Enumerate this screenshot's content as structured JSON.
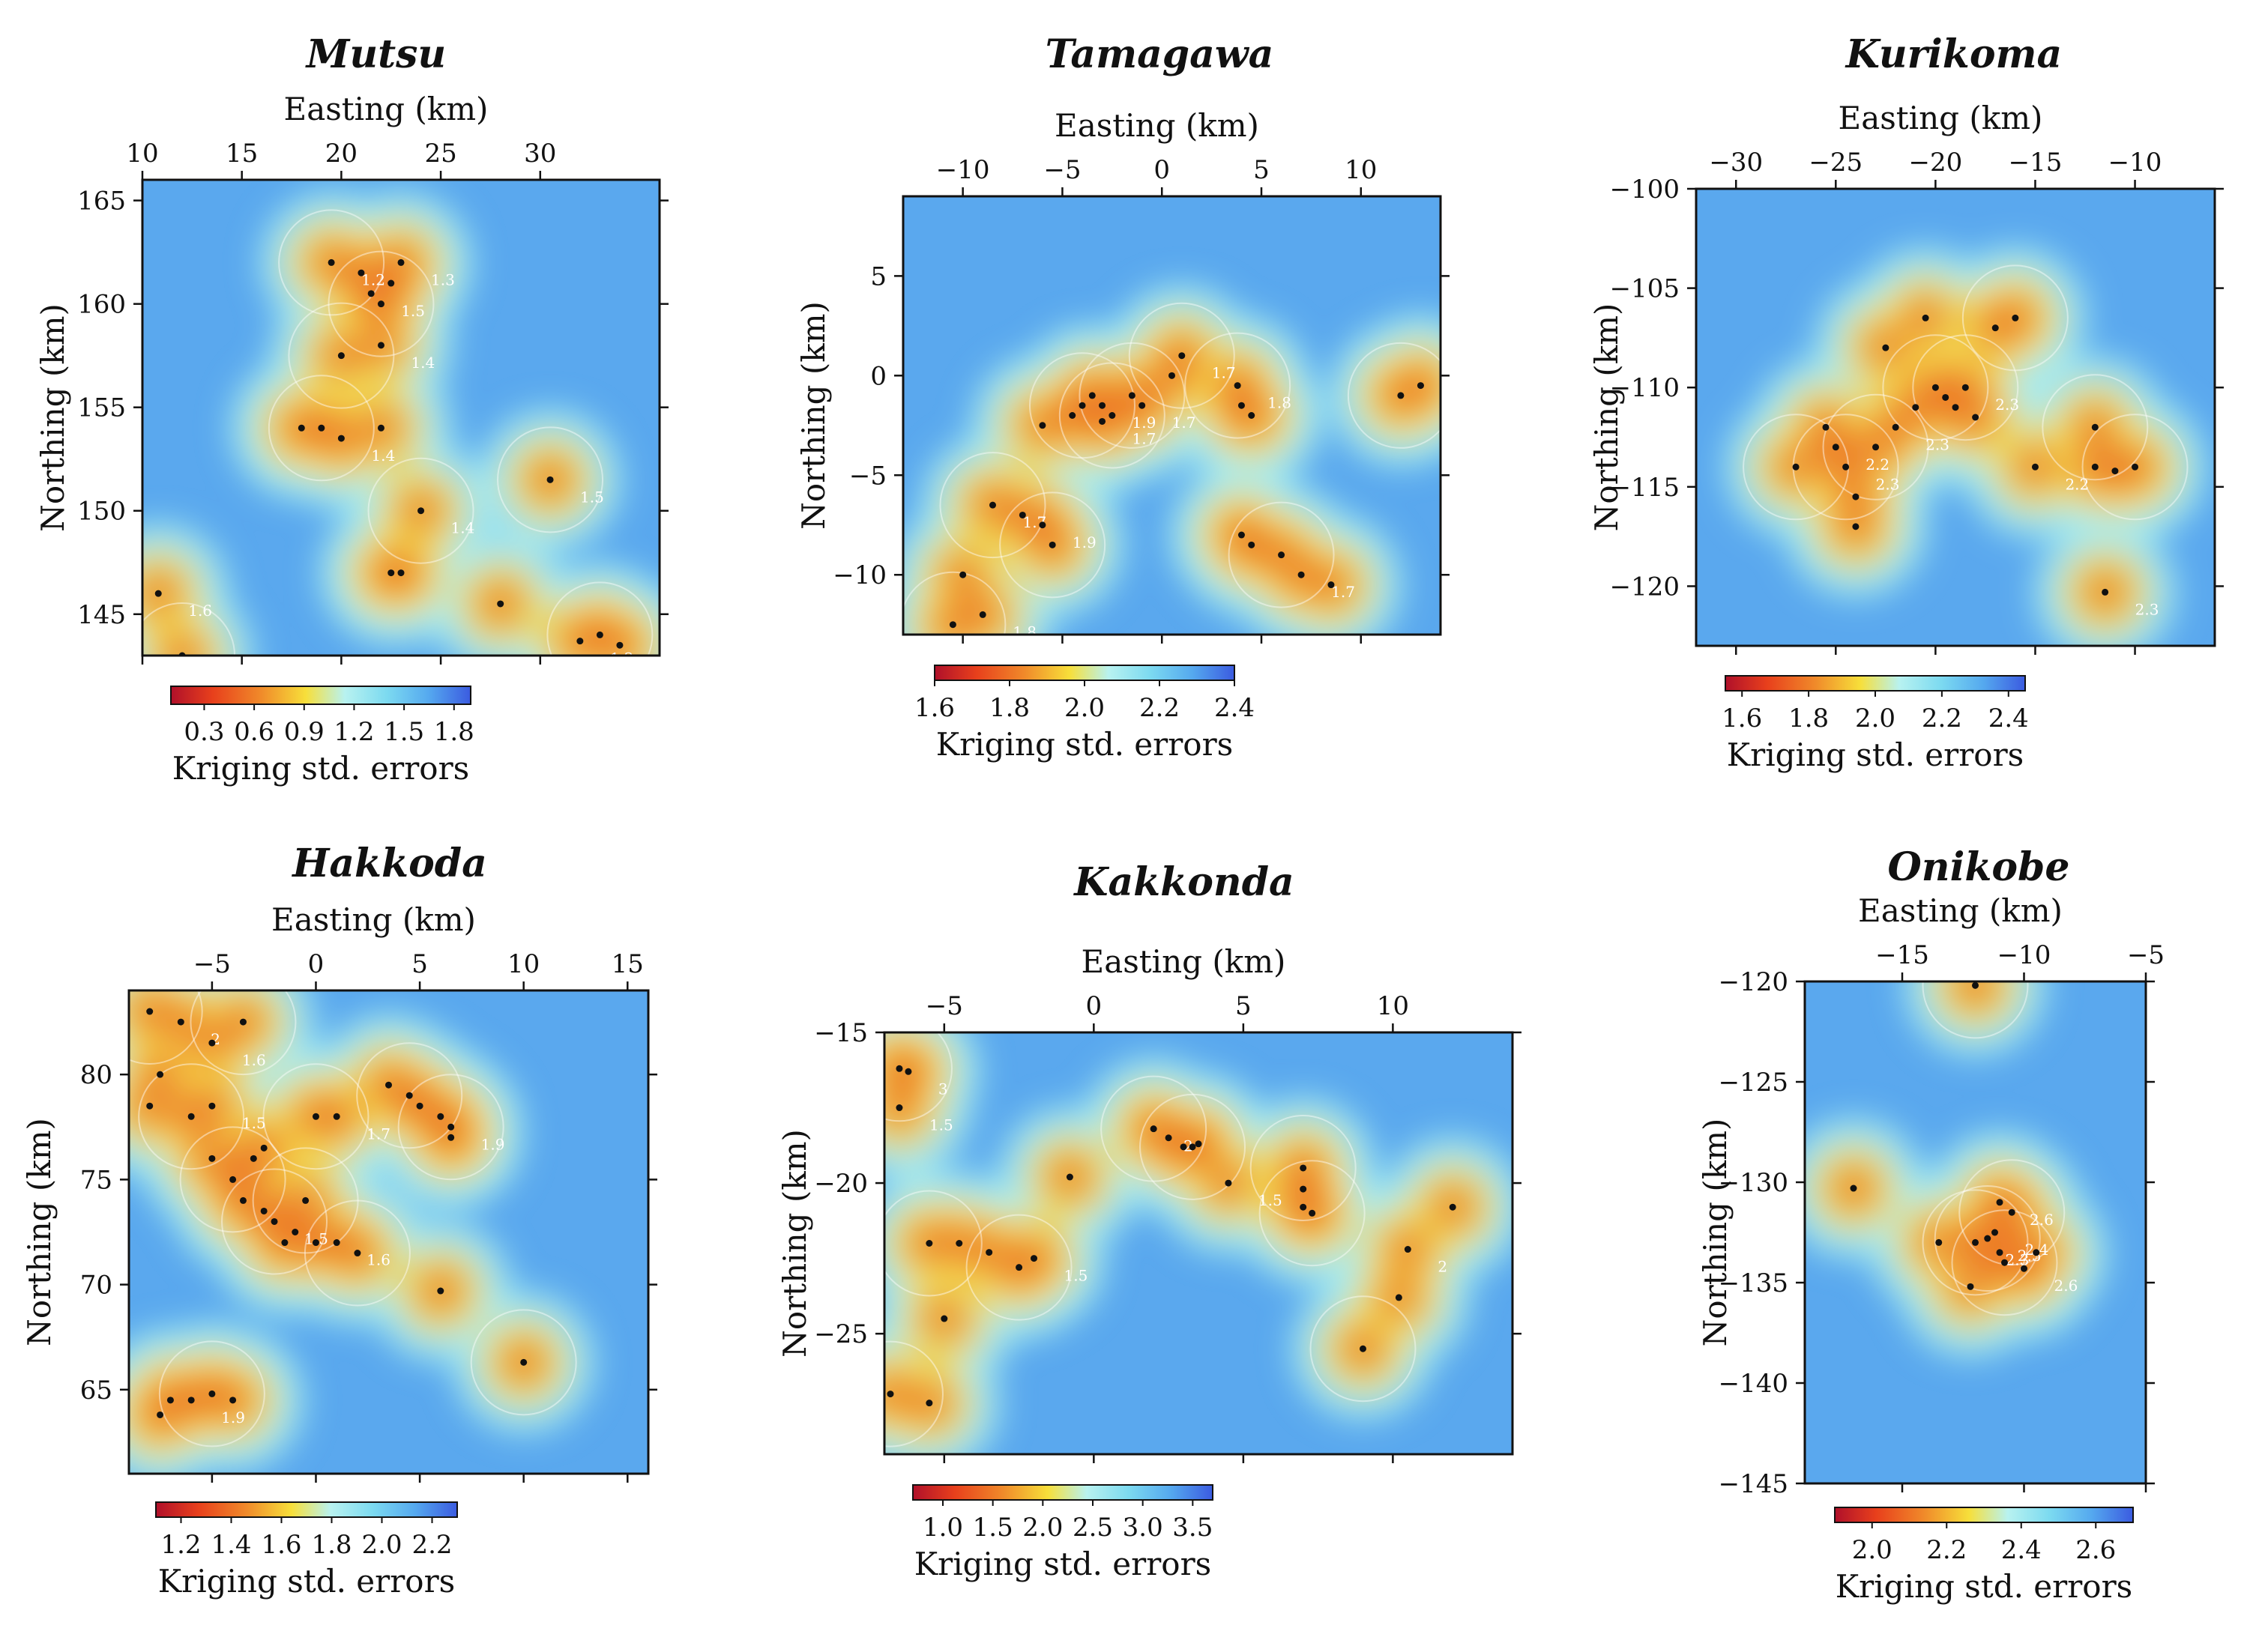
{
  "figure": {
    "x_axis_label": "Easting (km)",
    "y_axis_label": "Northing (km)",
    "colorbar_label": "Kriging std. errors"
  },
  "chart_data": [
    {
      "type": "heatmap",
      "title": "Mutsu",
      "xlabel": "Easting (km)",
      "ylabel": "Northing (km)",
      "xlim": [
        10,
        36
      ],
      "ylim": [
        143,
        166
      ],
      "xticks": [
        10,
        15,
        20,
        25,
        30
      ],
      "yticks": [
        145,
        150,
        155,
        160,
        165
      ],
      "colorbar": {
        "label": "Kriging std. errors",
        "range": [
          0.1,
          1.9
        ],
        "ticks": [
          "0.3",
          "0.6",
          "0.9",
          "1.2",
          "1.5",
          "1.8"
        ]
      },
      "points": [
        [
          19.5,
          162
        ],
        [
          21,
          161.5
        ],
        [
          21.5,
          160.5
        ],
        [
          22,
          160
        ],
        [
          22.5,
          161
        ],
        [
          23,
          162
        ],
        [
          20,
          157.5
        ],
        [
          22,
          158
        ],
        [
          18,
          154
        ],
        [
          19,
          154
        ],
        [
          20,
          153.5
        ],
        [
          22,
          154
        ],
        [
          24,
          150
        ],
        [
          22.5,
          147
        ],
        [
          23,
          147
        ],
        [
          30.5,
          151.5
        ],
        [
          28,
          145.5
        ],
        [
          32,
          143.7
        ],
        [
          33,
          144
        ],
        [
          34,
          143.5
        ],
        [
          10.8,
          146
        ],
        [
          12,
          143
        ]
      ],
      "contour_labels": [
        "1.5",
        "1.4",
        "1.4",
        "1.2",
        "1.2",
        "1.3",
        "1.4",
        "1.5",
        "1.6"
      ]
    },
    {
      "type": "heatmap",
      "title": "Tamagawa",
      "xlabel": "Easting (km)",
      "ylabel": "Northing (km)",
      "xlim": [
        -13,
        14
      ],
      "ylim": [
        -13,
        9
      ],
      "xticks": [
        -10,
        -5,
        0,
        5,
        10
      ],
      "yticks": [
        -10,
        -5,
        0,
        5
      ],
      "colorbar": {
        "label": "Kriging std. errors",
        "range": [
          1.6,
          2.4
        ],
        "ticks": [
          "1.6",
          "1.8",
          "2.0",
          "2.2",
          "2.4"
        ]
      },
      "points": [
        [
          -4,
          -1.5
        ],
        [
          -3.5,
          -1
        ],
        [
          -3,
          -1.5
        ],
        [
          -2.5,
          -2
        ],
        [
          -3,
          -2.3
        ],
        [
          -4.5,
          -2
        ],
        [
          -1.5,
          -1
        ],
        [
          -1,
          -1.5
        ],
        [
          0.5,
          0
        ],
        [
          3.8,
          -0.5
        ],
        [
          4,
          -1.5
        ],
        [
          4.5,
          -2
        ],
        [
          -8.5,
          -6.5
        ],
        [
          -7,
          -7
        ],
        [
          -6,
          -7.5
        ],
        [
          -5.5,
          -8.5
        ],
        [
          -10,
          -10
        ],
        [
          -9,
          -12
        ],
        [
          -10.5,
          -12.5
        ],
        [
          4,
          -8
        ],
        [
          4.5,
          -8.5
        ],
        [
          6,
          -9
        ],
        [
          7,
          -10
        ],
        [
          8.5,
          -10.5
        ],
        [
          12,
          -1
        ],
        [
          13,
          -0.5
        ],
        [
          -6,
          -2.5
        ],
        [
          1,
          1
        ]
      ],
      "contour_labels": [
        "1.9",
        "1.7",
        "1.7",
        "1.8",
        "1.7",
        "1.7",
        "1.7",
        "1.8",
        "1.9"
      ]
    },
    {
      "type": "heatmap",
      "title": "Kurikoma",
      "xlabel": "Easting (km)",
      "ylabel": "Northing (km)",
      "xlim": [
        -32,
        -6
      ],
      "ylim": [
        -123,
        -100
      ],
      "xticks": [
        -30,
        -25,
        -20,
        -15,
        -10
      ],
      "yticks": [
        -100,
        -105,
        -110,
        -115,
        -120
      ],
      "colorbar": {
        "label": "Kriging std. errors",
        "range": [
          1.55,
          2.45
        ],
        "ticks": [
          "1.6",
          "1.8",
          "2.0",
          "2.2",
          "2.4"
        ]
      },
      "points": [
        [
          -27,
          -114
        ],
        [
          -25.5,
          -112
        ],
        [
          -25,
          -113
        ],
        [
          -24.5,
          -114
        ],
        [
          -24,
          -115.5
        ],
        [
          -24,
          -117
        ],
        [
          -23,
          -113
        ],
        [
          -22,
          -112
        ],
        [
          -21,
          -111
        ],
        [
          -20,
          -110
        ],
        [
          -19.5,
          -110.5
        ],
        [
          -19,
          -111
        ],
        [
          -18.5,
          -110
        ],
        [
          -18,
          -111.5
        ],
        [
          -17,
          -107
        ],
        [
          -16,
          -106.5
        ],
        [
          -20.5,
          -106.5
        ],
        [
          -15,
          -114
        ],
        [
          -12,
          -112
        ],
        [
          -12,
          -114
        ],
        [
          -11,
          -114.2
        ],
        [
          -10,
          -114
        ],
        [
          -11.5,
          -120.3
        ],
        [
          -22.5,
          -108
        ]
      ],
      "contour_labels": [
        "2.2",
        "2.3",
        "2.3",
        "2.2",
        "2.3",
        "2.3"
      ]
    },
    {
      "type": "heatmap",
      "title": "Hakkoda",
      "xlabel": "Easting (km)",
      "ylabel": "Northing (km)",
      "xlim": [
        -9,
        16
      ],
      "ylim": [
        61,
        84
      ],
      "xticks": [
        -5,
        0,
        5,
        10,
        15
      ],
      "yticks": [
        65,
        70,
        75,
        80
      ],
      "colorbar": {
        "label": "Kriging std. errors",
        "range": [
          1.1,
          2.3
        ],
        "ticks": [
          "1.2",
          "1.4",
          "1.6",
          "1.8",
          "2.0",
          "2.2"
        ]
      },
      "points": [
        [
          -8,
          83
        ],
        [
          -6.5,
          82.5
        ],
        [
          -5,
          81.5
        ],
        [
          -3.5,
          82.5
        ],
        [
          -7.5,
          80
        ],
        [
          -8,
          78.5
        ],
        [
          -6,
          78
        ],
        [
          -5,
          78.5
        ],
        [
          -5,
          76
        ],
        [
          -4,
          75
        ],
        [
          -3.5,
          74
        ],
        [
          -2.5,
          73.5
        ],
        [
          -2,
          73
        ],
        [
          -1.5,
          72
        ],
        [
          -1,
          72.5
        ],
        [
          -0.5,
          74
        ],
        [
          0,
          72
        ],
        [
          1,
          72
        ],
        [
          2,
          71.5
        ],
        [
          -3,
          76
        ],
        [
          -2.5,
          76.5
        ],
        [
          0,
          78
        ],
        [
          1,
          78
        ],
        [
          3.5,
          79.5
        ],
        [
          4.5,
          79
        ],
        [
          5,
          78.5
        ],
        [
          6,
          78
        ],
        [
          6.5,
          77.5
        ],
        [
          6.5,
          77
        ],
        [
          6,
          69.7
        ],
        [
          10,
          66.3
        ],
        [
          -7,
          64.5
        ],
        [
          -6,
          64.5
        ],
        [
          -5,
          64.8
        ],
        [
          -4,
          64.5
        ],
        [
          -7.5,
          63.8
        ]
      ],
      "contour_labels": [
        "1.6",
        "1.5",
        "1.5",
        "1.6",
        "1.7",
        "1.9",
        "1.9",
        "2"
      ]
    },
    {
      "type": "heatmap",
      "title": "Kakkonda",
      "xlabel": "Easting (km)",
      "ylabel": "Northing (km)",
      "xlim": [
        -7,
        14
      ],
      "ylim": [
        -29,
        -15
      ],
      "xticks": [
        -5,
        0,
        5,
        10
      ],
      "yticks": [
        -15,
        -20,
        -25
      ],
      "colorbar": {
        "label": "Kriging std. errors",
        "range": [
          0.7,
          3.7
        ],
        "ticks": [
          "1.0",
          "1.5",
          "2.0",
          "2.5",
          "3.0",
          "3.5"
        ]
      },
      "points": [
        [
          -6.5,
          -16.2
        ],
        [
          -6.2,
          -16.3
        ],
        [
          -6.5,
          -17.5
        ],
        [
          -5.5,
          -22
        ],
        [
          -4.5,
          -22
        ],
        [
          -3.5,
          -22.3
        ],
        [
          -2.5,
          -22.8
        ],
        [
          -2,
          -22.5
        ],
        [
          -5,
          -24.5
        ],
        [
          -6.8,
          -27
        ],
        [
          -5.5,
          -27.3
        ],
        [
          -0.8,
          -19.8
        ],
        [
          2,
          -18.2
        ],
        [
          2.5,
          -18.5
        ],
        [
          3,
          -18.8
        ],
        [
          3.3,
          -18.8
        ],
        [
          3.5,
          -18.7
        ],
        [
          4.5,
          -20
        ],
        [
          7,
          -19.5
        ],
        [
          7,
          -20.2
        ],
        [
          7,
          -20.8
        ],
        [
          7.3,
          -21
        ],
        [
          10.5,
          -22.2
        ],
        [
          10.2,
          -23.8
        ],
        [
          9,
          -25.5
        ],
        [
          12,
          -20.8
        ]
      ],
      "contour_labels": [
        "1.5",
        "1.5",
        "2",
        "1.5",
        "2",
        "3"
      ]
    },
    {
      "type": "heatmap",
      "title": "Onikobe",
      "xlabel": "Easting (km)",
      "ylabel": "Northing (km)",
      "xlim": [
        -19,
        -5
      ],
      "ylim": [
        -145,
        -120
      ],
      "xticks": [
        -15,
        -10,
        -5
      ],
      "yticks": [
        -120,
        -125,
        -130,
        -135,
        -140,
        -145
      ],
      "colorbar": {
        "label": "Kriging std. errors",
        "range": [
          1.9,
          2.7
        ],
        "ticks": [
          "2.0",
          "2.2",
          "2.4",
          "2.6"
        ]
      },
      "points": [
        [
          -12,
          -120.2
        ],
        [
          -17,
          -130.3
        ],
        [
          -11,
          -131
        ],
        [
          -10.5,
          -131.5
        ],
        [
          -11.2,
          -132.5
        ],
        [
          -11,
          -133.5
        ],
        [
          -10.8,
          -134
        ],
        [
          -10,
          -134.3
        ],
        [
          -9.5,
          -133.5
        ],
        [
          -12,
          -133
        ],
        [
          -13.5,
          -133
        ],
        [
          -12.2,
          -135.2
        ],
        [
          -11.5,
          -132.8
        ]
      ],
      "contour_labels": [
        "2.6",
        "2.6",
        "2.5",
        "2.4",
        "2.3"
      ]
    }
  ]
}
